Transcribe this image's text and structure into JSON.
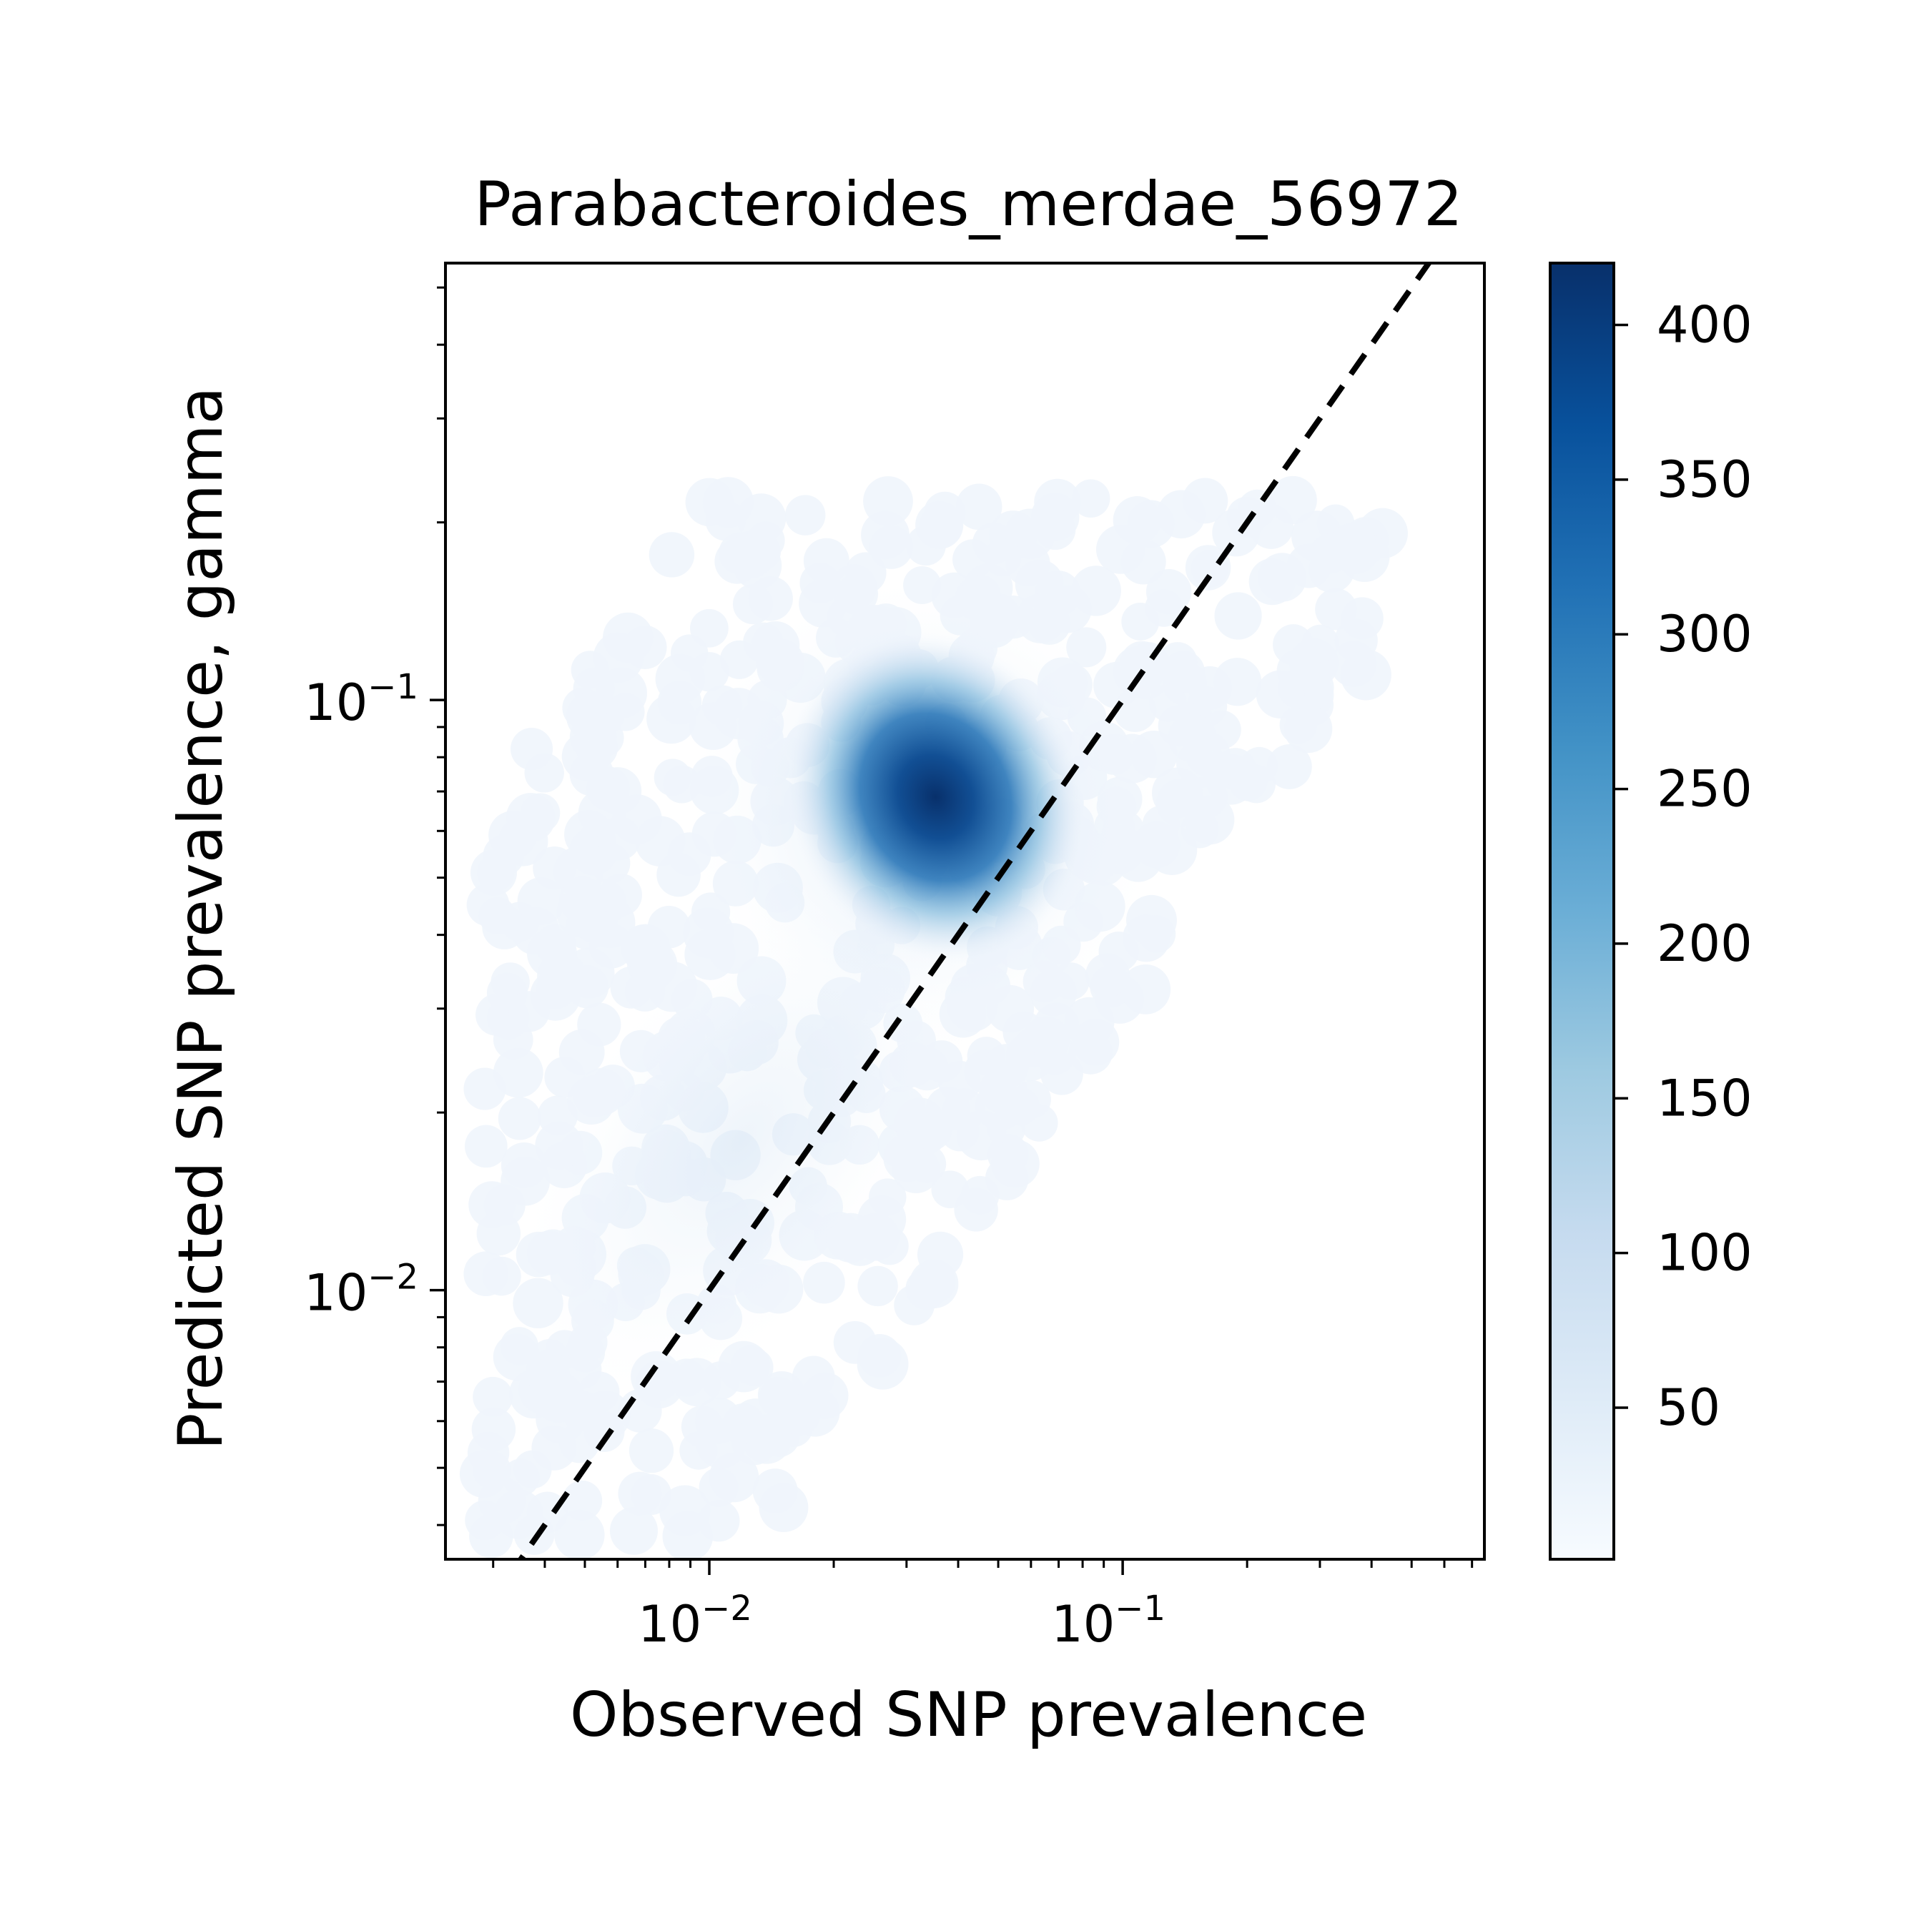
{
  "chart_data": {
    "type": "heatmap",
    "title": "Parabacteroides_merdae_56972",
    "xlabel": "Observed SNP prevalence",
    "ylabel": "Predicted SNP prevalence, gamma",
    "x_scale": "log",
    "y_scale": "log",
    "xlim": [
      0.0023,
      0.75
    ],
    "ylim": [
      0.0035,
      0.55
    ],
    "x_major_ticks": [
      {
        "value": 0.01,
        "base": "10",
        "exp": "−2"
      },
      {
        "value": 0.1,
        "base": "10",
        "exp": "−1"
      }
    ],
    "y_major_ticks": [
      {
        "value": 0.01,
        "base": "10",
        "exp": "−2"
      },
      {
        "value": 0.1,
        "base": "10",
        "exp": "−1"
      }
    ],
    "reference_line": {
      "style": "dashed",
      "color": "#000000",
      "x": [
        0.0029,
        0.62
      ],
      "y": [
        0.0029,
        0.62
      ]
    },
    "density_peak": {
      "x": 0.037,
      "y": 0.072,
      "value": 420
    },
    "point_cloud": {
      "x_range": [
        0.0028,
        0.45
      ],
      "y_range": [
        0.0038,
        0.22
      ]
    },
    "colorbar": {
      "colormap": "Blues",
      "min": 1,
      "max": 420,
      "ticks": [
        50,
        100,
        150,
        200,
        250,
        300,
        350,
        400
      ],
      "tick_labels": [
        "50",
        "100",
        "150",
        "200",
        "250",
        "300",
        "350",
        "400"
      ]
    },
    "grid": false,
    "legend": "none"
  }
}
